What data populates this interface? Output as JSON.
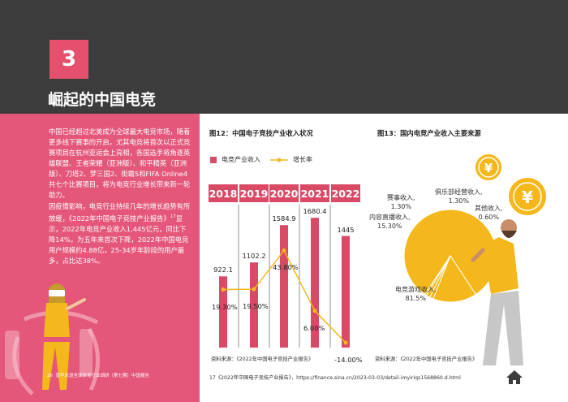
{
  "chapter": {
    "number": "3",
    "title": "崛起的中国电竞"
  },
  "left": {
    "para1": "中国已经超过北美成为全球最大电竞市场，随着更多线下赛事的开启，尤其电竞将首次以正式竞赛项目在杭州亚运会上亮相，各国选手将角逐英雄联盟、王者荣耀（亚洲版）、和平精英（亚洲版）、刀塔2、梦三国2、街霸5和FIFA Online4共七个比赛项目，将为电竞行业增长带来新一轮助力。",
    "para2_a": "因疫情影响，电竞行业持续几年的增长趋势有所放缓，《2022年中国电子竞技产业报告》",
    "para2_sup": "17",
    "para2_b": "显示，2022年电竞产业收入1,445亿元，同比下降14%，为五年来首次下降，2022年中国电竞用户规模约4.88亿，25-34岁年龄段的用户最多，占比达38%。",
    "footer_page": "26",
    "footer_text": "普华永道全球体育行业调研（第七期）中国报告"
  },
  "fig12": {
    "title": "图12：中国电子竞技产业收入状况",
    "legend_revenue": "电竞产业收入",
    "legend_growth": "增长率",
    "source": "资料来源：《2022年中国电子竞技产业报告》"
  },
  "fig13": {
    "title": "图13：国内电竞产业收入主要来源",
    "source": "资料来源：《2022年中国电子竞技产业报告》",
    "labels": {
      "game": [
        "电竞游戏收入,",
        "81.5%"
      ],
      "live": [
        "内容直播收入,",
        "15.30%"
      ],
      "event": [
        "赛事收入,",
        "1.30%"
      ],
      "club": [
        "俱乐部经营收入,",
        "1.30%"
      ],
      "other": [
        "其他收入,",
        "0.60%"
      ]
    }
  },
  "footnote": "17《2022年中国电子竞技产业报告》，https://finance.sina.cn/2023-03-03/detail-imyiriqs1568860.d.html",
  "coin_symbol": "¥",
  "colors": {
    "pink": "#e4567a",
    "bar": "#d94a67",
    "gold": "#f5b81c",
    "dark": "#3c3c3c"
  },
  "chart_data": [
    {
      "type": "bar",
      "title": "图12：中国电子竞技产业收入状况",
      "categories": [
        "2018",
        "2019",
        "2020",
        "2021",
        "2022"
      ],
      "series": [
        {
          "name": "电竞产业收入",
          "values": [
            922.1,
            1102.2,
            1584.9,
            1680.4,
            1445
          ],
          "labels": [
            "922.1",
            "1102.2",
            "1584.9",
            "1680.4",
            "1445"
          ]
        },
        {
          "name": "增长率",
          "type": "line",
          "values": [
            19.3,
            19.5,
            43.8,
            6.0,
            -14.0
          ],
          "labels": [
            "19.30%",
            "19.50%",
            "43.80%",
            "6.00%",
            "-14.00%"
          ]
        }
      ],
      "legend": "top"
    },
    {
      "type": "pie",
      "title": "图13：国内电竞产业收入主要来源",
      "categories": [
        "电竞游戏收入",
        "内容直播收入",
        "赛事收入",
        "俱乐部经营收入",
        "其他收入"
      ],
      "values": [
        81.5,
        15.3,
        1.3,
        1.3,
        0.6
      ]
    }
  ]
}
